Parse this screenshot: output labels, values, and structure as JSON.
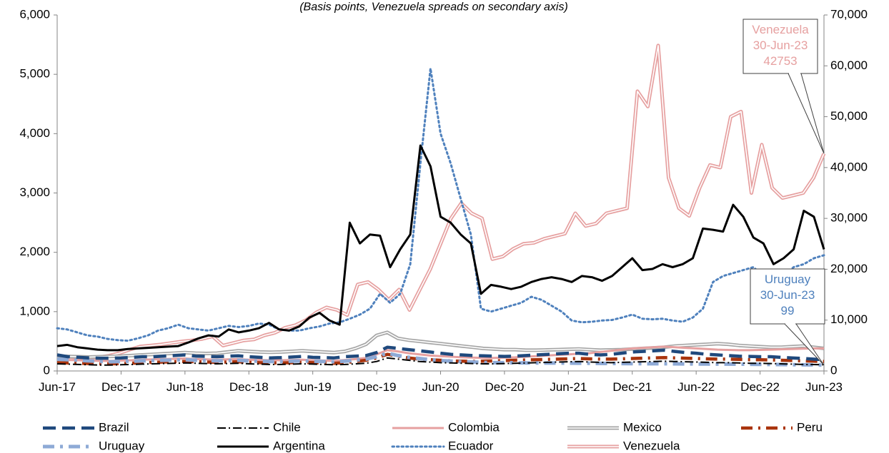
{
  "chart_data": {
    "type": "line",
    "subtitle": "(Basis points, Venezuela spreads on secondary axis)",
    "x_labels": [
      "Jun-17",
      "Dec-17",
      "Jun-18",
      "Dec-18",
      "Jun-19",
      "Dec-19",
      "Jun-20",
      "Dec-20",
      "Jun-21",
      "Dec-21",
      "Jun-22",
      "Dec-22",
      "Jun-23"
    ],
    "y_left": {
      "min": 0,
      "max": 6000,
      "ticks": [
        0,
        1000,
        2000,
        3000,
        4000,
        5000,
        6000
      ],
      "tick_labels": [
        "0",
        "1,000",
        "2,000",
        "3,000",
        "4,000",
        "5,000",
        "6,000"
      ]
    },
    "y_right": {
      "min": 0,
      "max": 70000,
      "ticks": [
        0,
        10000,
        20000,
        30000,
        40000,
        50000,
        60000,
        70000
      ],
      "tick_labels": [
        "0",
        "10,000",
        "20,000",
        "30,000",
        "40,000",
        "50,000",
        "60,000",
        "70,000"
      ]
    },
    "grid": false,
    "legend_position": "bottom",
    "series": [
      {
        "name": "Brazil",
        "axis": "left",
        "color": "#1f497d",
        "style": "longdash",
        "values": [
          270,
          240,
          230,
          220,
          215,
          215,
          220,
          230,
          240,
          240,
          250,
          260,
          270,
          250,
          245,
          240,
          250,
          255,
          240,
          230,
          220,
          225,
          235,
          245,
          230,
          225,
          220,
          240,
          250,
          260,
          310,
          400,
          380,
          360,
          340,
          320,
          300,
          280,
          270,
          260,
          255,
          250,
          245,
          250,
          260,
          270,
          280,
          290,
          300,
          300,
          280,
          270,
          280,
          300,
          320,
          330,
          340,
          350,
          330,
          310,
          300,
          280,
          270,
          260,
          250,
          245,
          240,
          240,
          230,
          220,
          210,
          200,
          190
        ]
      },
      {
        "name": "Chile",
        "axis": "left",
        "color": "#000000",
        "style": "dashdot",
        "values": [
          120,
          115,
          110,
          105,
          100,
          100,
          105,
          110,
          115,
          120,
          125,
          130,
          135,
          130,
          125,
          120,
          125,
          130,
          120,
          115,
          110,
          110,
          115,
          120,
          115,
          110,
          105,
          110,
          120,
          130,
          160,
          220,
          200,
          180,
          160,
          150,
          140,
          135,
          130,
          125,
          120,
          120,
          125,
          130,
          135,
          140,
          145,
          150,
          155,
          160,
          150,
          145,
          140,
          145,
          150,
          155,
          160,
          165,
          160,
          155,
          150,
          145,
          140,
          140,
          135,
          130,
          130,
          125,
          120,
          115,
          110,
          108,
          105
        ]
      },
      {
        "name": "Colombia",
        "axis": "left",
        "color": "#e6a0a0",
        "style": "solid",
        "values": [
          190,
          185,
          180,
          175,
          170,
          170,
          175,
          180,
          190,
          195,
          200,
          205,
          210,
          200,
          195,
          190,
          195,
          200,
          190,
          185,
          180,
          180,
          185,
          190,
          180,
          175,
          170,
          185,
          200,
          220,
          280,
          350,
          330,
          300,
          280,
          260,
          250,
          240,
          230,
          225,
          220,
          220,
          225,
          230,
          240,
          250,
          260,
          270,
          280,
          290,
          300,
          320,
          340,
          360,
          380,
          390,
          400,
          410,
          400,
          390,
          380,
          370,
          360,
          355,
          350,
          350,
          355,
          360,
          365,
          370,
          375,
          380,
          380
        ]
      },
      {
        "name": "Mexico",
        "axis": "left",
        "color": "#a6a6a6",
        "style": "double",
        "values": [
          250,
          245,
          240,
          235,
          240,
          245,
          250,
          260,
          270,
          280,
          290,
          300,
          310,
          300,
          295,
          300,
          320,
          340,
          330,
          320,
          315,
          320,
          330,
          340,
          330,
          320,
          310,
          330,
          380,
          450,
          600,
          650,
          550,
          520,
          500,
          480,
          460,
          440,
          420,
          400,
          380,
          370,
          360,
          360,
          350,
          350,
          355,
          360,
          365,
          370,
          360,
          350,
          355,
          360,
          370,
          380,
          390,
          400,
          420,
          430,
          440,
          450,
          460,
          450,
          430,
          420,
          410,
          400,
          400,
          410,
          420,
          400,
          380
        ]
      },
      {
        "name": "Peru",
        "axis": "left",
        "color": "#a9340d",
        "style": "longdash-dot",
        "values": [
          140,
          135,
          130,
          125,
          120,
          120,
          125,
          130,
          140,
          145,
          150,
          155,
          160,
          155,
          150,
          145,
          150,
          155,
          145,
          140,
          135,
          135,
          140,
          145,
          140,
          135,
          130,
          140,
          160,
          180,
          220,
          280,
          250,
          220,
          200,
          190,
          180,
          170,
          165,
          160,
          165,
          170,
          175,
          180,
          185,
          190,
          195,
          200,
          205,
          210,
          205,
          200,
          200,
          205,
          210,
          215,
          220,
          225,
          220,
          215,
          210,
          205,
          200,
          200,
          195,
          190,
          190,
          185,
          180,
          175,
          170,
          165,
          160
        ]
      },
      {
        "name": "Uruguay",
        "axis": "left",
        "color": "#8eaad6",
        "style": "dashdot-thick",
        "values": [
          200,
          190,
          180,
          170,
          160,
          155,
          160,
          165,
          170,
          175,
          180,
          185,
          190,
          180,
          175,
          170,
          175,
          180,
          170,
          165,
          160,
          160,
          165,
          170,
          165,
          160,
          155,
          165,
          180,
          200,
          240,
          300,
          260,
          230,
          210,
          190,
          175,
          165,
          155,
          150,
          145,
          140,
          140,
          138,
          136,
          135,
          134,
          133,
          132,
          131,
          130,
          128,
          126,
          125,
          124,
          123,
          122,
          121,
          120,
          119,
          118,
          117,
          116,
          115,
          114,
          113,
          112,
          110,
          108,
          106,
          104,
          102,
          99
        ]
      },
      {
        "name": "Argentina",
        "axis": "left",
        "color": "#000000",
        "style": "solid-thick",
        "values": [
          420,
          440,
          400,
          380,
          360,
          350,
          350,
          370,
          380,
          390,
          400,
          410,
          420,
          480,
          550,
          600,
          580,
          700,
          650,
          680,
          720,
          810,
          700,
          680,
          750,
          900,
          980,
          850,
          780,
          2500,
          2150,
          2300,
          2280,
          1750,
          2050,
          2300,
          3800,
          3450,
          2600,
          2500,
          2300,
          2150,
          1300,
          1450,
          1420,
          1380,
          1420,
          1500,
          1550,
          1580,
          1550,
          1500,
          1600,
          1580,
          1520,
          1600,
          1750,
          1900,
          1700,
          1720,
          1800,
          1750,
          1800,
          1900,
          2400,
          2380,
          2350,
          2800,
          2600,
          2250,
          2150,
          1800,
          1900,
          2050,
          2700,
          2600,
          2050
        ]
      },
      {
        "name": "Ecuador",
        "axis": "left",
        "color": "#4f81bd",
        "style": "dotted",
        "values": [
          720,
          700,
          650,
          600,
          580,
          540,
          520,
          510,
          550,
          600,
          680,
          720,
          780,
          720,
          700,
          680,
          720,
          760,
          740,
          760,
          800,
          780,
          700,
          680,
          680,
          720,
          750,
          800,
          820,
          880,
          950,
          1050,
          1300,
          1150,
          1300,
          1800,
          3500,
          5100,
          4000,
          3500,
          2900,
          2300,
          1050,
          1000,
          1050,
          1100,
          1150,
          1250,
          1200,
          1100,
          1000,
          850,
          820,
          830,
          850,
          860,
          900,
          950,
          880,
          870,
          880,
          850,
          830,
          900,
          1050,
          1500,
          1600,
          1650,
          1700,
          1750,
          1600,
          1500,
          1600,
          1750,
          1800,
          1900,
          1950
        ]
      },
      {
        "name": "Venezuela",
        "axis": "right",
        "color": "#e6a0a0",
        "style": "double",
        "values": [
          3000,
          2800,
          2600,
          2500,
          2700,
          3000,
          3500,
          4200,
          4800,
          5000,
          5200,
          5500,
          5800,
          6000,
          6300,
          6800,
          5000,
          5500,
          6000,
          6200,
          7000,
          7500,
          8500,
          9000,
          10000,
          11500,
          12500,
          12000,
          11000,
          17000,
          17500,
          16000,
          14000,
          16000,
          12000,
          16000,
          20000,
          25000,
          30000,
          33000,
          31000,
          30000,
          22000,
          22500,
          24000,
          25000,
          25200,
          26000,
          26500,
          27000,
          31000,
          28500,
          29000,
          31000,
          31500,
          32000,
          55000,
          52000,
          64000,
          38000,
          32000,
          30500,
          36000,
          40500,
          40000,
          50000,
          51000,
          35000,
          44500,
          36000,
          34000,
          34500,
          35000,
          38000,
          42753
        ]
      }
    ],
    "annotations": [
      {
        "series": "Venezuela",
        "lines": [
          "Venezuela",
          "30-Jun-23",
          "42753"
        ],
        "color": "#e6a0a0"
      },
      {
        "series": "Uruguay",
        "lines": [
          "Uruguay",
          "30-Jun-23",
          "99"
        ],
        "color": "#4f81bd"
      }
    ]
  },
  "legend": [
    {
      "name": "Brazil"
    },
    {
      "name": "Chile"
    },
    {
      "name": "Colombia"
    },
    {
      "name": "Mexico"
    },
    {
      "name": "Peru"
    },
    {
      "name": "Uruguay"
    },
    {
      "name": "Argentina"
    },
    {
      "name": "Ecuador"
    },
    {
      "name": "Venezuela"
    }
  ]
}
